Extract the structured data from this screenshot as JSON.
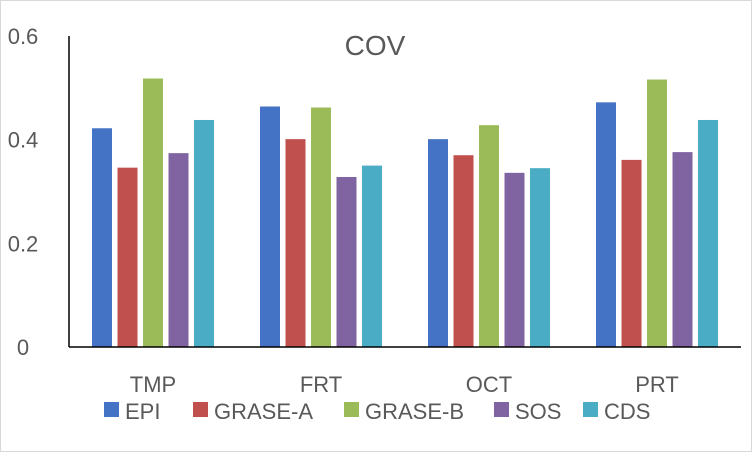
{
  "chart_data": {
    "type": "bar",
    "title": "COV",
    "xlabel": "",
    "ylabel": "",
    "ylim": [
      0,
      0.6
    ],
    "yticks": [
      "0",
      "0.2",
      "0.4",
      "0.6"
    ],
    "ytick_values": [
      0,
      0.2,
      0.4,
      0.6
    ],
    "categories": [
      "TMP",
      "FRT",
      "OCT",
      "PRT"
    ],
    "series": [
      {
        "name": "EPI",
        "color": "#4472C4",
        "values": [
          0.422,
          0.464,
          0.401,
          0.472
        ]
      },
      {
        "name": "GRASE-A",
        "color": "#C0504D",
        "values": [
          0.346,
          0.401,
          0.37,
          0.361
        ]
      },
      {
        "name": "GRASE-B",
        "color": "#9BBB59",
        "values": [
          0.518,
          0.462,
          0.428,
          0.516
        ]
      },
      {
        "name": "SOS",
        "color": "#8064A2",
        "values": [
          0.374,
          0.328,
          0.336,
          0.376
        ]
      },
      {
        "name": "CDS",
        "color": "#4BACC6",
        "values": [
          0.438,
          0.35,
          0.345,
          0.438
        ]
      }
    ],
    "legend_position": "bottom",
    "grid": false
  }
}
